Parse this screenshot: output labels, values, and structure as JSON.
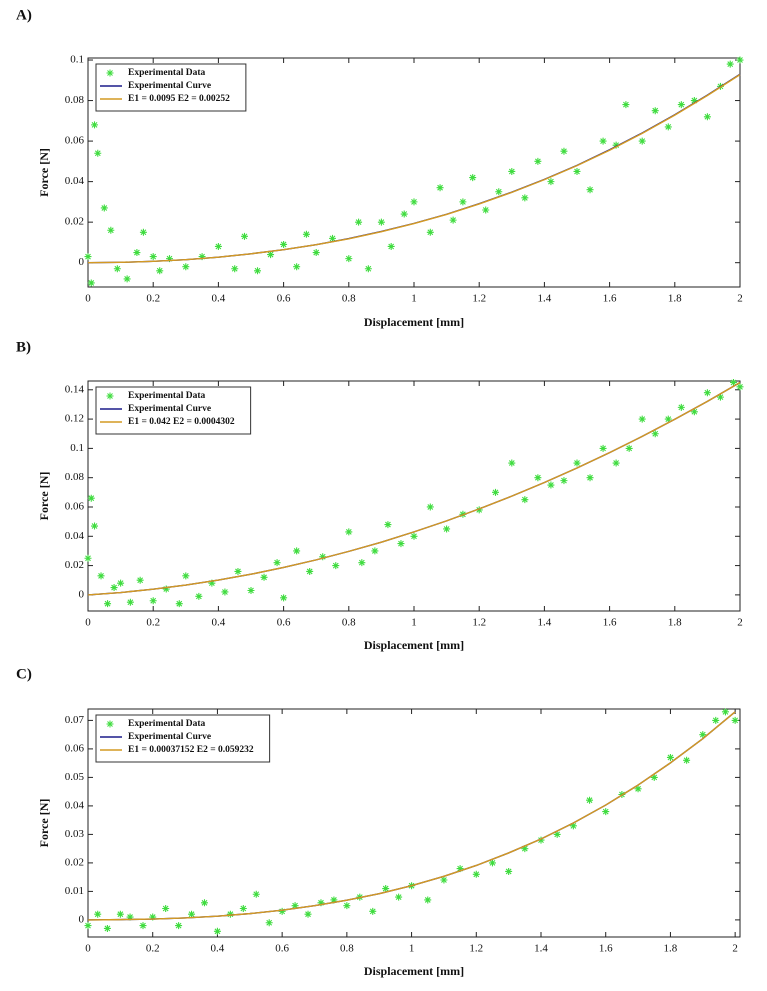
{
  "chart_data": [
    {
      "label": "A)",
      "type": "scatter",
      "xlabel": "Displacement [mm]",
      "ylabel": "Force [N]",
      "xlim": [
        0,
        2
      ],
      "ylim": [
        -0.012,
        0.101
      ],
      "xticks": [
        0,
        0.2,
        0.4,
        0.6,
        0.8,
        1,
        1.2,
        1.4,
        1.6,
        1.8,
        2
      ],
      "yticks": [
        0,
        0.02,
        0.04,
        0.06,
        0.08,
        0.1
      ],
      "series": [
        {
          "name": "Experimental Data",
          "type": "scatter",
          "color": "#3fdc3f",
          "x": [
            0,
            0.01,
            0.02,
            0.03,
            0.05,
            0.07,
            0.09,
            0.12,
            0.15,
            0.17,
            0.2,
            0.22,
            0.25,
            0.3,
            0.35,
            0.4,
            0.45,
            0.48,
            0.52,
            0.56,
            0.6,
            0.64,
            0.67,
            0.7,
            0.75,
            0.8,
            0.83,
            0.86,
            0.9,
            0.93,
            0.97,
            1.0,
            1.05,
            1.08,
            1.12,
            1.15,
            1.18,
            1.22,
            1.26,
            1.3,
            1.34,
            1.38,
            1.42,
            1.46,
            1.5,
            1.54,
            1.58,
            1.62,
            1.65,
            1.7,
            1.74,
            1.78,
            1.82,
            1.86,
            1.9,
            1.94,
            1.97,
            2.0
          ],
          "values": [
            0.003,
            -0.01,
            0.068,
            0.054,
            0.027,
            0.016,
            -0.003,
            -0.008,
            0.005,
            0.015,
            0.003,
            -0.004,
            0.002,
            -0.002,
            0.003,
            0.008,
            -0.003,
            0.013,
            -0.004,
            0.004,
            0.009,
            -0.002,
            0.014,
            0.005,
            0.012,
            0.002,
            0.02,
            -0.003,
            0.02,
            0.008,
            0.024,
            0.03,
            0.015,
            0.037,
            0.021,
            0.03,
            0.042,
            0.026,
            0.035,
            0.045,
            0.032,
            0.05,
            0.04,
            0.055,
            0.045,
            0.036,
            0.06,
            0.058,
            0.078,
            0.06,
            0.075,
            0.067,
            0.078,
            0.08,
            0.072,
            0.087,
            0.098,
            0.1
          ]
        },
        {
          "name": "Experimental Curve",
          "type": "line",
          "color": "#1c1c8a",
          "x": [
            0,
            0.1,
            0.2,
            0.3,
            0.4,
            0.5,
            0.6,
            0.7,
            0.8,
            0.9,
            1,
            1.1,
            1.2,
            1.3,
            1.4,
            1.5,
            1.6,
            1.7,
            1.8,
            1.9,
            2
          ],
          "values": [
            0,
            0.00016,
            0.00065,
            0.0015,
            0.0027,
            0.0044,
            0.0064,
            0.0089,
            0.0119,
            0.0154,
            0.0194,
            0.0239,
            0.0291,
            0.0348,
            0.0411,
            0.048,
            0.0557,
            0.064,
            0.073,
            0.0827,
            0.093
          ]
        },
        {
          "name": "E1 = 0.0095 E2 = 0.00252",
          "type": "line",
          "color": "#d49a22",
          "x": [
            0,
            0.1,
            0.2,
            0.3,
            0.4,
            0.5,
            0.6,
            0.7,
            0.8,
            0.9,
            1,
            1.1,
            1.2,
            1.3,
            1.4,
            1.5,
            1.6,
            1.7,
            1.8,
            1.9,
            2
          ],
          "values": [
            0,
            0.00016,
            0.00065,
            0.0015,
            0.0027,
            0.0044,
            0.0064,
            0.0089,
            0.0118,
            0.0153,
            0.0193,
            0.0238,
            0.029,
            0.0347,
            0.041,
            0.0479,
            0.0555,
            0.0638,
            0.0728,
            0.0825,
            0.0928
          ]
        }
      ]
    },
    {
      "label": "B)",
      "type": "scatter",
      "xlabel": "Displacement [mm]",
      "ylabel": "Force [N]",
      "xlim": [
        0,
        2
      ],
      "ylim": [
        -0.011,
        0.146
      ],
      "xticks": [
        0,
        0.2,
        0.4,
        0.6,
        0.8,
        1,
        1.2,
        1.4,
        1.6,
        1.8,
        2
      ],
      "yticks": [
        0,
        0.02,
        0.04,
        0.06,
        0.08,
        0.1,
        0.12,
        0.14
      ],
      "series": [
        {
          "name": "Experimental Data",
          "type": "scatter",
          "color": "#3fdc3f",
          "x": [
            0,
            0.01,
            0.02,
            0.04,
            0.06,
            0.08,
            0.1,
            0.13,
            0.16,
            0.2,
            0.24,
            0.28,
            0.3,
            0.34,
            0.38,
            0.42,
            0.46,
            0.5,
            0.54,
            0.58,
            0.6,
            0.64,
            0.68,
            0.72,
            0.76,
            0.8,
            0.84,
            0.88,
            0.92,
            0.96,
            1.0,
            1.05,
            1.1,
            1.15,
            1.2,
            1.25,
            1.3,
            1.34,
            1.38,
            1.42,
            1.46,
            1.5,
            1.54,
            1.58,
            1.62,
            1.66,
            1.7,
            1.74,
            1.78,
            1.82,
            1.86,
            1.9,
            1.94,
            1.98,
            2.0
          ],
          "values": [
            0.025,
            0.066,
            0.047,
            0.013,
            -0.006,
            0.005,
            0.008,
            -0.005,
            0.01,
            -0.004,
            0.004,
            -0.006,
            0.013,
            -0.001,
            0.008,
            0.002,
            0.016,
            0.003,
            0.012,
            0.022,
            -0.002,
            0.03,
            0.016,
            0.026,
            0.02,
            0.043,
            0.022,
            0.03,
            0.048,
            0.035,
            0.04,
            0.06,
            0.045,
            0.055,
            0.058,
            0.07,
            0.09,
            0.065,
            0.08,
            0.075,
            0.078,
            0.09,
            0.08,
            0.1,
            0.09,
            0.1,
            0.12,
            0.11,
            0.12,
            0.128,
            0.125,
            0.138,
            0.135,
            0.145,
            0.142
          ]
        },
        {
          "name": "Experimental Curve",
          "type": "line",
          "color": "#1c1c8a",
          "x": [
            0,
            0.1,
            0.2,
            0.3,
            0.4,
            0.5,
            0.6,
            0.7,
            0.8,
            0.9,
            1,
            1.1,
            1.2,
            1.3,
            1.4,
            1.5,
            1.6,
            1.7,
            1.8,
            1.9,
            2
          ],
          "values": [
            0,
            0.0016,
            0.0039,
            0.0067,
            0.0101,
            0.0141,
            0.0187,
            0.0239,
            0.0297,
            0.036,
            0.043,
            0.0505,
            0.0587,
            0.0674,
            0.0767,
            0.0866,
            0.0971,
            0.1082,
            0.1199,
            0.1321,
            0.145
          ]
        },
        {
          "name": "E1 = 0.042  E2 = 0.0004302",
          "type": "line",
          "color": "#d49a22",
          "x": [
            0,
            0.1,
            0.2,
            0.3,
            0.4,
            0.5,
            0.6,
            0.7,
            0.8,
            0.9,
            1,
            1.1,
            1.2,
            1.3,
            1.4,
            1.5,
            1.6,
            1.7,
            1.8,
            1.9,
            2
          ],
          "values": [
            0,
            0.0016,
            0.0039,
            0.0067,
            0.0101,
            0.0141,
            0.0187,
            0.0239,
            0.0297,
            0.036,
            0.043,
            0.0505,
            0.0587,
            0.0674,
            0.0767,
            0.0866,
            0.0971,
            0.1082,
            0.1199,
            0.1321,
            0.145
          ]
        }
      ]
    },
    {
      "label": "C)",
      "type": "scatter",
      "xlabel": "Displacement [mm]",
      "ylabel": "Force [N]",
      "xlim": [
        0,
        2.015
      ],
      "ylim": [
        -0.006,
        0.074
      ],
      "xticks": [
        0,
        0.2,
        0.4,
        0.6,
        0.8,
        1,
        1.2,
        1.4,
        1.6,
        1.8,
        2
      ],
      "yticks": [
        0,
        0.01,
        0.02,
        0.03,
        0.04,
        0.05,
        0.06,
        0.07
      ],
      "series": [
        {
          "name": "Experimental Data",
          "type": "scatter",
          "color": "#3fdc3f",
          "x": [
            0,
            0.03,
            0.06,
            0.1,
            0.13,
            0.17,
            0.2,
            0.24,
            0.28,
            0.32,
            0.36,
            0.4,
            0.44,
            0.48,
            0.52,
            0.56,
            0.6,
            0.64,
            0.68,
            0.72,
            0.76,
            0.8,
            0.84,
            0.88,
            0.92,
            0.96,
            1.0,
            1.05,
            1.1,
            1.15,
            1.2,
            1.25,
            1.3,
            1.35,
            1.4,
            1.45,
            1.5,
            1.55,
            1.6,
            1.65,
            1.7,
            1.75,
            1.8,
            1.85,
            1.9,
            1.94,
            1.97,
            2.0
          ],
          "values": [
            -0.002,
            0.002,
            -0.003,
            0.002,
            0.001,
            -0.002,
            0.001,
            0.004,
            -0.002,
            0.002,
            0.006,
            -0.004,
            0.002,
            0.004,
            0.009,
            -0.001,
            0.003,
            0.005,
            0.002,
            0.006,
            0.007,
            0.005,
            0.008,
            0.003,
            0.011,
            0.008,
            0.012,
            0.007,
            0.014,
            0.018,
            0.016,
            0.02,
            0.017,
            0.025,
            0.028,
            0.03,
            0.033,
            0.042,
            0.038,
            0.044,
            0.046,
            0.05,
            0.057,
            0.056,
            0.065,
            0.07,
            0.073,
            0.07
          ]
        },
        {
          "name": "Experimental Curve",
          "type": "line",
          "color": "#1c1c8a",
          "x": [
            0,
            0.1,
            0.2,
            0.3,
            0.4,
            0.5,
            0.6,
            0.7,
            0.8,
            0.9,
            1,
            1.1,
            1.2,
            1.3,
            1.4,
            1.5,
            1.6,
            1.7,
            1.8,
            1.9,
            2
          ],
          "values": [
            0,
            0.0001,
            0.0003,
            0.0007,
            0.0013,
            0.0022,
            0.0034,
            0.005,
            0.0069,
            0.0092,
            0.012,
            0.0153,
            0.0191,
            0.0235,
            0.0284,
            0.034,
            0.0403,
            0.0473,
            0.0551,
            0.0636,
            0.073
          ]
        },
        {
          "name": "E1 = 0.00037152  E2 = 0.059232",
          "type": "line",
          "color": "#d49a22",
          "x": [
            0,
            0.1,
            0.2,
            0.3,
            0.4,
            0.5,
            0.6,
            0.7,
            0.8,
            0.9,
            1,
            1.1,
            1.2,
            1.3,
            1.4,
            1.5,
            1.6,
            1.7,
            1.8,
            1.9,
            2
          ],
          "values": [
            0,
            0.0001,
            0.0003,
            0.0007,
            0.0013,
            0.0022,
            0.0034,
            0.005,
            0.0069,
            0.0092,
            0.012,
            0.0153,
            0.0191,
            0.0235,
            0.0284,
            0.034,
            0.0403,
            0.0473,
            0.0551,
            0.0636,
            0.073
          ]
        }
      ]
    }
  ]
}
